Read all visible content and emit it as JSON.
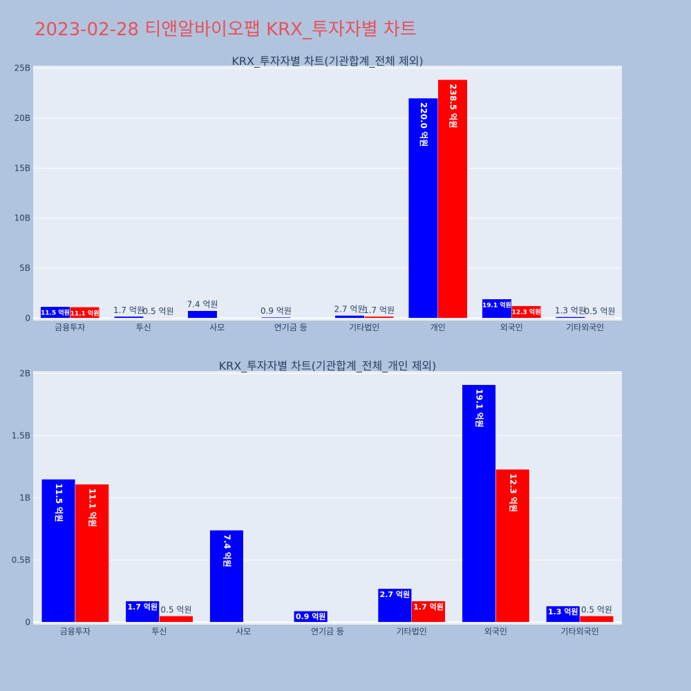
{
  "page": {
    "title": "2023-02-28 티앤알바이오팹 KRX_투자자별 차트",
    "background": "#b0c4de",
    "plot_background": "#e5ecf6",
    "title_color": "#e8505b"
  },
  "chart_data": [
    {
      "type": "bar",
      "title": "KRX_투자자별 차트(기관합계_전체 제외)",
      "categories": [
        "금융투자",
        "투신",
        "사모",
        "연기금 등",
        "기타법인",
        "개인",
        "외국인",
        "기타외국인"
      ],
      "series": [
        {
          "color": "#0000ff",
          "values": [
            1.15,
            0.17,
            0.74,
            0.09,
            0.27,
            22.0,
            1.91,
            0.13
          ],
          "labels": [
            "11.5 억원",
            "1.7 억원",
            "7.4 억원",
            "0.9 억원",
            "2.7 억원",
            "220.0 억원",
            "19.1 억원",
            "1.3 억원"
          ]
        },
        {
          "color": "#ff0000",
          "values": [
            1.11,
            0.05,
            0,
            0,
            0.17,
            23.85,
            1.23,
            0.05
          ],
          "labels": [
            "11.1 억원",
            "0.5 억원",
            "",
            "",
            "1.7 억원",
            "238.5 억원",
            "12.3 억원",
            "0.5 억원"
          ]
        }
      ],
      "yticks": [
        0,
        5,
        10,
        15,
        20,
        25
      ],
      "ytick_labels": [
        "0",
        "5B",
        "10B",
        "15B",
        "20B",
        "25B"
      ],
      "ylim": [
        -0.25,
        25.25
      ],
      "grid": true
    },
    {
      "type": "bar",
      "title": "KRX_투자자별 차트(기관합계_전체_개인 제외)",
      "categories": [
        "금융투자",
        "투신",
        "사모",
        "연기금 등",
        "기타법인",
        "외국인",
        "기타외국인"
      ],
      "series": [
        {
          "color": "#0000ff",
          "values": [
            1.15,
            0.17,
            0.74,
            0.09,
            0.27,
            1.91,
            0.13
          ],
          "labels": [
            "11.5 억원",
            "1.7 억원",
            "7.4 억원",
            "0.9 억원",
            "2.7 억원",
            "19.1 억원",
            "1.3 억원"
          ]
        },
        {
          "color": "#ff0000",
          "values": [
            1.11,
            0.05,
            0,
            0,
            0.17,
            1.23,
            0.05
          ],
          "labels": [
            "11.1 억원",
            "0.5 억원",
            "",
            "",
            "1.7 억원",
            "12.3 억원",
            "0.5 억원"
          ]
        }
      ],
      "yticks": [
        0,
        0.5,
        1,
        1.5,
        2
      ],
      "ytick_labels": [
        "0",
        "0.5B",
        "1B",
        "1.5B",
        "2B"
      ],
      "ylim": [
        -0.02,
        2.02
      ],
      "grid": true
    }
  ]
}
